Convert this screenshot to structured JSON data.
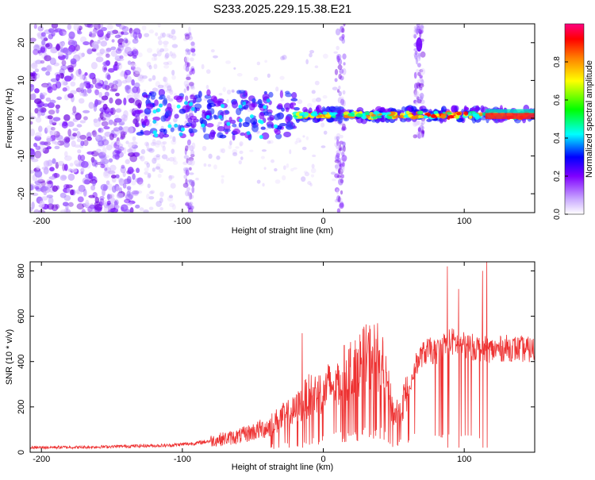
{
  "figure_title": "S233.2025.229.15.38.E21",
  "colors": {
    "snr_line": "#ee3333",
    "axis": "#000000",
    "spectrogram_bg": "#ffffff"
  },
  "chart_data": [
    {
      "type": "heatmap",
      "name": "spectrogram",
      "title": "S233.2025.229.15.38.E21",
      "xlabel": "Height of straight line (km)",
      "ylabel": "Frequency (Hz)",
      "xlim": [
        -208,
        150
      ],
      "ylim": [
        -25,
        25
      ],
      "xticks": [
        -200,
        -100,
        0,
        100
      ],
      "yticks": [
        -20,
        -10,
        0,
        10,
        20
      ],
      "colorbar": {
        "label": "Normalized spectral amplitude",
        "range": [
          0,
          1
        ],
        "ticks": [
          0.0,
          0.2,
          0.4,
          0.6,
          0.8
        ],
        "colormap": [
          "#ffffff",
          "#8000ff",
          "#0000ff",
          "#00ffff",
          "#00ff00",
          "#ffff00",
          "#ff8000",
          "#ff0000",
          "#ff0080"
        ]
      },
      "features": [
        {
          "description": "broadband noise",
          "x_range": [
            -208,
            -130
          ],
          "freq_range": [
            -25,
            25
          ],
          "amplitude": 0.1
        },
        {
          "description": "vertical streak",
          "x": -95,
          "freq_range": [
            -25,
            25
          ],
          "amplitude": 0.1
        },
        {
          "description": "vertical streak",
          "x": 12,
          "freq_range": [
            -25,
            25
          ],
          "amplitude": 0.12
        },
        {
          "description": "vertical streak",
          "x": 68,
          "freq_range": [
            -5,
            25
          ],
          "amplitude": 0.1
        },
        {
          "description": "narrowband line near 0 Hz",
          "x_range": [
            -130,
            150
          ],
          "freq": 0.5,
          "amplitude": 0.9
        }
      ]
    },
    {
      "type": "line",
      "name": "snr",
      "title": "",
      "xlabel": "Height of straight line (km)",
      "ylabel": "SNR (10 * v/v)",
      "xlim": [
        -208,
        150
      ],
      "ylim": [
        0,
        840
      ],
      "xticks": [
        -200,
        -100,
        0,
        100
      ],
      "yticks": [
        0,
        200,
        400,
        600,
        800
      ],
      "series": [
        {
          "name": "SNR",
          "color": "#ee3333",
          "x": [
            -208,
            -190,
            -170,
            -150,
            -130,
            -110,
            -100,
            -90,
            -80,
            -70,
            -60,
            -50,
            -40,
            -30,
            -20,
            -15,
            -10,
            0,
            10,
            20,
            30,
            35,
            40,
            45,
            50,
            55,
            60,
            65,
            70,
            75,
            80,
            85,
            90,
            95,
            100,
            110,
            120,
            130,
            140,
            150
          ],
          "y": [
            20,
            22,
            22,
            25,
            28,
            30,
            35,
            40,
            50,
            60,
            70,
            90,
            110,
            150,
            180,
            220,
            250,
            270,
            320,
            370,
            410,
            430,
            420,
            300,
            160,
            200,
            260,
            380,
            430,
            450,
            440,
            470,
            490,
            480,
            470,
            460,
            450,
            460,
            455,
            450
          ],
          "spikes_up": [
            {
              "x": -15,
              "y": 525
            },
            {
              "x": 88,
              "y": 820
            },
            {
              "x": 96,
              "y": 720
            },
            {
              "x": 113,
              "y": 800
            },
            {
              "x": 116,
              "y": 840
            }
          ]
        }
      ]
    }
  ]
}
